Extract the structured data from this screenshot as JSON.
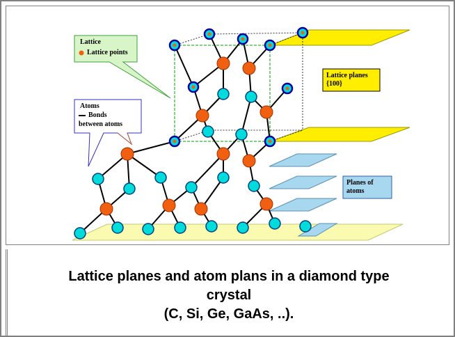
{
  "diagram": {
    "lattice_box": {
      "title": "Lattice",
      "item": "Lattice points"
    },
    "atoms_box": {
      "title": "Atoms",
      "item": "Bonds",
      "item_cont": "between atoms"
    },
    "planes_label": "Lattice planes {100}",
    "atom_planes_label": "Planes of atoms"
  },
  "caption": {
    "lines": [
      "Lattice planes and atom plans in a diamond type",
      "crystal",
      "(C, Si, Ge, GaAs, ..)."
    ]
  }
}
